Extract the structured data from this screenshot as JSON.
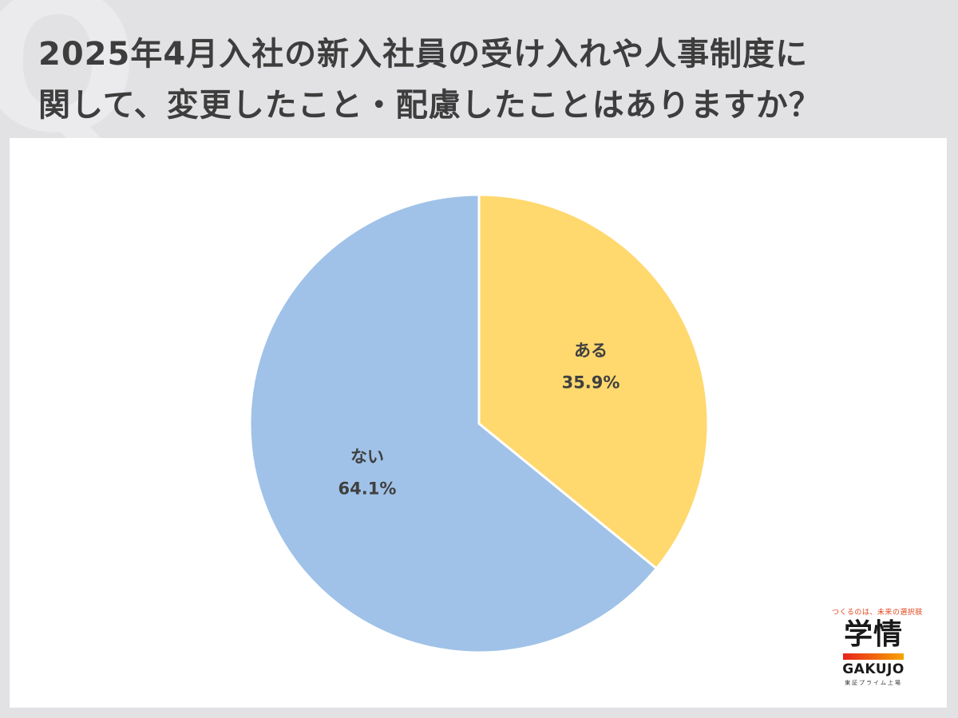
{
  "title_lines": [
    "2025年4月入社の新入社員の受け入れや人事制度に",
    "関して、変更したこと・配慮したことはありますか？"
  ],
  "chart_data": {
    "type": "pie",
    "title": "2025年4月入社の新入社員の受け入れや人事制度に関して、変更したこと・配慮したことはありますか？",
    "start_angle": "12 o'clock, clockwise",
    "slices": [
      {
        "label": "ある",
        "value": 35.9,
        "value_text": "35.9%",
        "color": "#ffd86e"
      },
      {
        "label": "ない",
        "value": 64.1,
        "value_text": "64.1%",
        "color": "#a0c2e8"
      }
    ],
    "legend": "none",
    "slice_border_color": "#ffffff"
  },
  "logo": {
    "tagline": "つくるのは、未来の選択肢",
    "kanji": "学情",
    "roman": "GAKUJO",
    "sub": "東証プライム上場",
    "bar_colors": [
      "#e8231c",
      "#f7a400"
    ]
  },
  "colors": {
    "background": "#e2e1e4",
    "panel": "#ffffff",
    "title_text": "#3d3d3d",
    "label_text": "#404040"
  }
}
